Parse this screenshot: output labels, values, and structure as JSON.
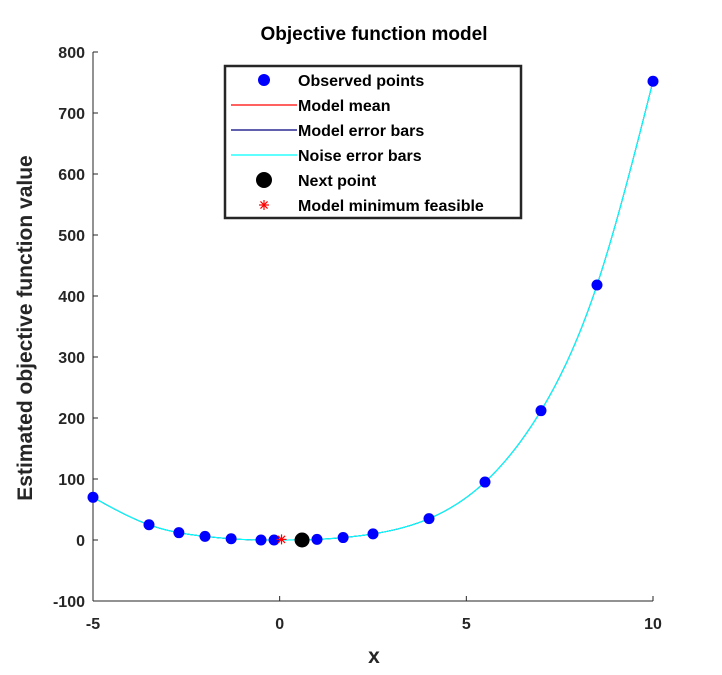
{
  "chart_data": {
    "type": "scatter",
    "title": "Objective function model",
    "xlabel": "x",
    "ylabel": "Estimated objective function value",
    "xlim": [
      -5,
      10
    ],
    "ylim": [
      -100,
      800
    ],
    "xticks": [
      -5,
      0,
      5,
      10
    ],
    "yticks": [
      -100,
      0,
      100,
      200,
      300,
      400,
      500,
      600,
      700,
      800
    ],
    "xtick_labels": [
      "-5",
      "0",
      "5",
      "10"
    ],
    "ytick_labels": [
      "-100",
      "0",
      "100",
      "200",
      "300",
      "400",
      "500",
      "600",
      "700",
      "800"
    ],
    "grid": false,
    "legend_position": "top-center",
    "legend": [
      {
        "label": "Observed points",
        "marker": "dot",
        "color": "#0000ff"
      },
      {
        "label": "Model mean",
        "marker": "line",
        "color": "#ff0000"
      },
      {
        "label": "Model error bars",
        "marker": "line",
        "color": "#00007f"
      },
      {
        "label": "Noise error bars",
        "marker": "line",
        "color": "#00ffff"
      },
      {
        "label": "Next point",
        "marker": "dot",
        "color": "#000000"
      },
      {
        "label": "Model minimum feasible",
        "marker": "asterisk",
        "color": "#ff0000"
      }
    ],
    "series": [
      {
        "name": "Observed points",
        "x": [
          -5,
          -3.5,
          -2.7,
          -2.0,
          -1.3,
          -0.5,
          -0.15,
          1.0,
          1.7,
          2.5,
          4.0,
          5.5,
          7.0,
          8.5,
          10.0
        ],
        "y": [
          70,
          25,
          12,
          6,
          2,
          0,
          0,
          1,
          4,
          10,
          35,
          95,
          212,
          418,
          752
        ],
        "color": "#0000ff"
      },
      {
        "name": "Model mean",
        "curve": "0.1*(x+0.3)^4 - 0.75*(x+0.3)^2*0 + 0.2*(x+0.3)^2 + 3.4*(x+0.3)^3*0",
        "color": "#ff0000"
      },
      {
        "name": "Noise error bars",
        "curve": "same as model mean",
        "color": "#00ffff"
      },
      {
        "name": "Next point",
        "x": [
          0.6
        ],
        "y": [
          0
        ],
        "color": "#000000"
      },
      {
        "name": "Model minimum feasible",
        "x": [
          0.05
        ],
        "y": [
          1
        ],
        "color": "#ff0000"
      }
    ]
  },
  "colors": {
    "observed": "#0000ff",
    "model_mean": "#ff0000",
    "model_error": "#00007f",
    "noise_error": "#00ffff",
    "next_point": "#000000",
    "minimum": "#ff0000",
    "axis": "#262626"
  }
}
